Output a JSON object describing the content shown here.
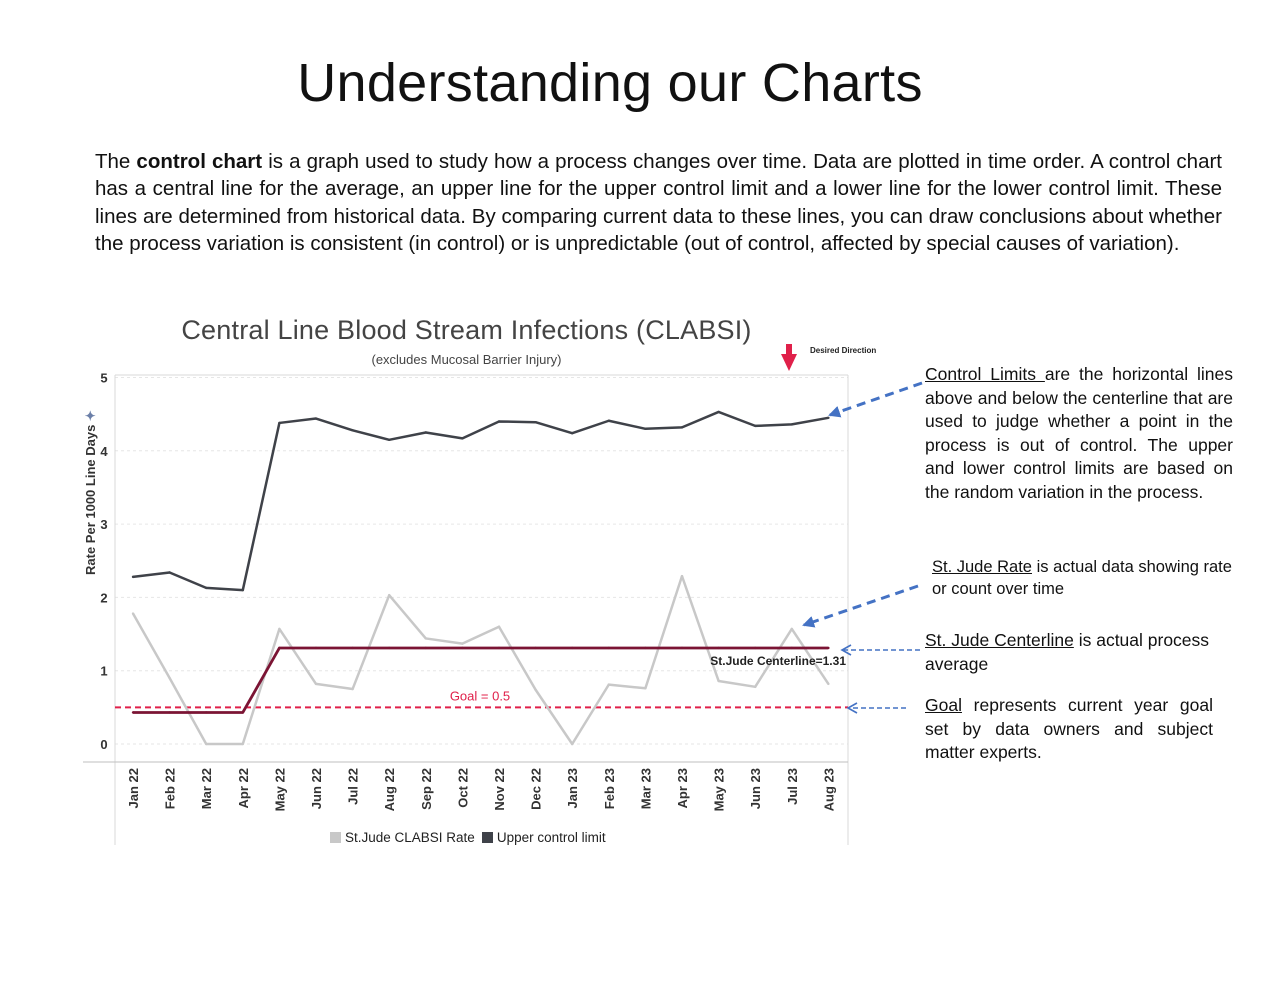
{
  "page": {
    "title": "Understanding our Charts",
    "intro": {
      "prefix": "The ",
      "bold": "control chart",
      "rest": " is a graph used to study how a process changes over time. Data are plotted in time order. A control chart has a central line for the average, an upper line for the upper control limit and a lower line for the lower control limit. These lines are determined from historical data. By comparing current data to these lines, you can draw conclusions about whether the process variation is consistent (in control) or is unpredictable (out of control, affected by special causes of variation)."
    }
  },
  "annotations": {
    "control_limits": {
      "term": "Control Limits ",
      "text": "are the horizontal lines above and below the centerline that are used to judge whether a point in the process is out of control. The upper and lower control limits are based on the random variation in the process."
    },
    "rate": {
      "term": "St. Jude Rate",
      "text": " is actual data showing rate or count over time"
    },
    "centerline": {
      "term": "St. Jude Centerline",
      "text": " is actual process average"
    },
    "goal": {
      "term": "Goal",
      "text": " represents current year goal set by data owners and subject matter experts."
    },
    "arrow_color": "#4472c4"
  },
  "chart_data": {
    "type": "line",
    "title": "Central Line Blood Stream Infections (CLABSI)",
    "subtitle": "(excludes Mucosal Barrier Injury)",
    "desired_direction": "Desired Direction",
    "ylabel": "Rate Per 1000 Line Days",
    "ylim": [
      0,
      5
    ],
    "yticks": [
      0,
      1,
      2,
      3,
      4,
      5
    ],
    "categories": [
      "Jan 22",
      "Feb 22",
      "Mar 22",
      "Apr 22",
      "May 22",
      "Jun 22",
      "Jul 22",
      "Aug 22",
      "Sep 22",
      "Oct 22",
      "Nov 22",
      "Dec 22",
      "Jan 23",
      "Feb 23",
      "Mar 23",
      "Apr 23",
      "May 23",
      "Jun 23",
      "Jul 23",
      "Aug 23"
    ],
    "series": [
      {
        "name": "St.Jude CLABSI Rate",
        "color": "#c8c8c8",
        "values": [
          1.78,
          0.9,
          0.0,
          0.0,
          1.57,
          0.82,
          0.75,
          2.03,
          1.44,
          1.37,
          1.6,
          0.74,
          0.0,
          0.81,
          0.76,
          2.29,
          0.86,
          0.78,
          1.57,
          0.82
        ]
      },
      {
        "name": "Upper control limit",
        "color": "#3f4249",
        "values": [
          2.28,
          2.34,
          2.13,
          2.1,
          4.38,
          4.44,
          4.28,
          4.15,
          4.25,
          4.17,
          4.4,
          4.39,
          4.24,
          4.41,
          4.3,
          4.32,
          4.53,
          4.34,
          4.36,
          4.45
        ]
      },
      {
        "name": "Centerline",
        "color": "#7b1434",
        "values": [
          0.43,
          0.43,
          0.43,
          0.43,
          1.31,
          1.31,
          1.31,
          1.31,
          1.31,
          1.31,
          1.31,
          1.31,
          1.31,
          1.31,
          1.31,
          1.31,
          1.31,
          1.31,
          1.31,
          1.31
        ]
      }
    ],
    "goal": {
      "value": 0.5,
      "label": "Goal = 0.5",
      "color": "#e0204a"
    },
    "centerline_label": "St.Jude Centerline=1.31",
    "legend": [
      {
        "label": "St.Jude CLABSI Rate",
        "color": "#c8c8c8"
      },
      {
        "label": "Upper control limit",
        "color": "#3f4249"
      }
    ],
    "legend_position": "bottom",
    "grid": true
  }
}
